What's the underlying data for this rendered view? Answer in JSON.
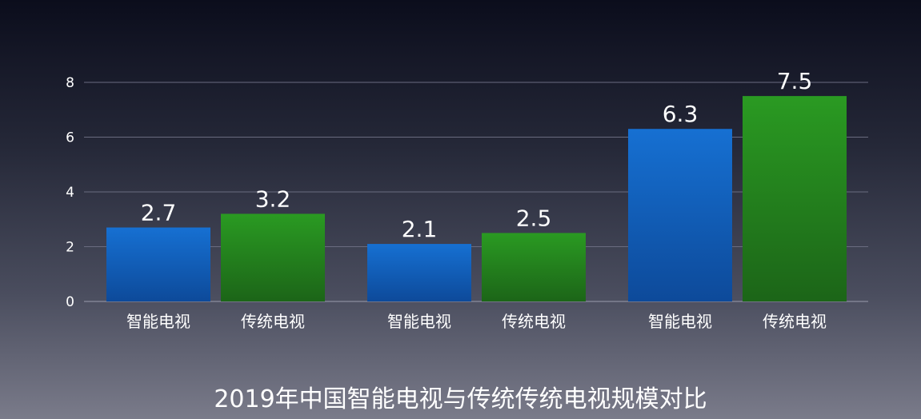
{
  "chart_data": {
    "type": "bar",
    "title": "2019年中国智能电视与传统传统电视规模对比",
    "categories": [
      "智能电视",
      "传统电视",
      "智能电视",
      "传统电视",
      "智能电视",
      "传统电视"
    ],
    "values": [
      2.7,
      3.2,
      2.1,
      2.5,
      6.3,
      7.5
    ],
    "value_labels": [
      "2.7",
      "3.2",
      "2.1",
      "2.5",
      "6.3",
      "7.5"
    ],
    "yticks": [
      0,
      2,
      4,
      6,
      8
    ],
    "ytick_labels": [
      "0",
      "2",
      "4",
      "6",
      "8"
    ],
    "ylim": [
      0,
      8
    ],
    "xlabel": "",
    "ylabel": "",
    "grid": true,
    "legend": "none",
    "colors": {
      "智能电视": "#1565c0",
      "传统电视": "#2e8b1f"
    }
  }
}
